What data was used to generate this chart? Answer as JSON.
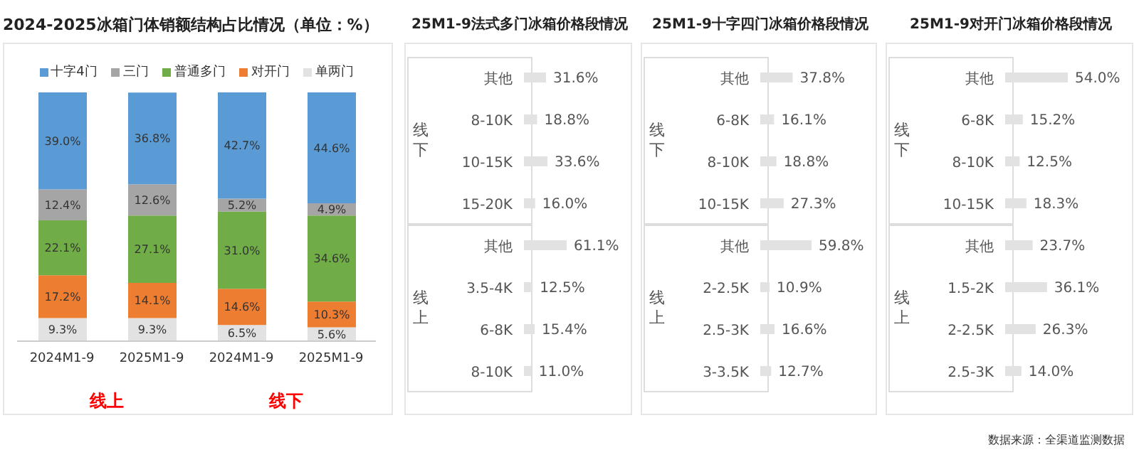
{
  "chart_data": [
    {
      "type": "bar",
      "stacked": true,
      "title": "2024-2025冰箱门体销额结构占比情况（单位：%）",
      "categories": [
        "2024M1-9",
        "2025M1-9",
        "2024M1-9",
        "2025M1-9"
      ],
      "legend": "top",
      "tick_labels": "x",
      "annotations": [
        "线上",
        "线下"
      ],
      "series": [
        {
          "name": "单两门",
          "color": "#e2e2e2",
          "values": [
            9.3,
            9.3,
            6.5,
            5.6
          ],
          "value_labels": [
            "9.3%",
            "9.3%",
            "6.5%",
            "5.6%"
          ]
        },
        {
          "name": "对开门",
          "color": "#ed7d31",
          "values": [
            17.2,
            14.1,
            14.6,
            10.3
          ],
          "value_labels": [
            "17.2%",
            "14.1%",
            "14.6%",
            "10.3%"
          ]
        },
        {
          "name": "普通多门",
          "color": "#70ad47",
          "values": [
            22.1,
            27.1,
            31.0,
            34.6
          ],
          "value_labels": [
            "22.1%",
            "27.1%",
            "31.0%",
            "34.6%"
          ]
        },
        {
          "name": "三门",
          "color": "#a5a5a5",
          "values": [
            12.4,
            12.6,
            5.2,
            4.9
          ],
          "value_labels": [
            "12.4%",
            "12.6%",
            "5.2%",
            "4.9%"
          ]
        },
        {
          "name": "十字4门",
          "color": "#5b9bd5",
          "values": [
            39.0,
            36.8,
            42.7,
            44.6
          ],
          "value_labels": [
            "39.0%",
            "36.8%",
            "42.7%",
            "44.6%"
          ]
        }
      ]
    },
    {
      "type": "bar",
      "orientation": "horizontal",
      "title": "25M1-9法式多门冰箱价格段情况",
      "tick_labels": "y",
      "categories": [
        "其他",
        "8-10K",
        "10-15K",
        "15-20K",
        "其他",
        "3.5-4K",
        "6-8K",
        "8-10K"
      ],
      "values": [
        31.6,
        18.8,
        33.6,
        16.0,
        61.1,
        12.5,
        15.4,
        11.0
      ],
      "value_labels": [
        "31.6%",
        "18.8%",
        "33.6%",
        "16.0%",
        "61.1%",
        "12.5%",
        "15.4%",
        "11.0%"
      ],
      "color": "#e2e2e2",
      "annotations": [
        "线下",
        "线上"
      ]
    },
    {
      "type": "bar",
      "orientation": "horizontal",
      "title": "25M1-9十字四门冰箱价格段情况",
      "tick_labels": "y",
      "categories": [
        "其他",
        "6-8K",
        "8-10K",
        "10-15K",
        "其他",
        "2-2.5K",
        "2.5-3K",
        "3-3.5K"
      ],
      "values": [
        37.8,
        16.1,
        18.8,
        27.3,
        59.8,
        10.9,
        16.6,
        12.7
      ],
      "value_labels": [
        "37.8%",
        "16.1%",
        "18.8%",
        "27.3%",
        "59.8%",
        "10.9%",
        "16.6%",
        "12.7%"
      ],
      "color": "#e2e2e2",
      "annotations": [
        "线下",
        "线上"
      ]
    },
    {
      "type": "bar",
      "orientation": "horizontal",
      "title": "25M1-9对开门冰箱价格段情况",
      "tick_labels": "y",
      "categories": [
        "其他",
        "6-8K",
        "8-10K",
        "10-15K",
        "其他",
        "1.5-2K",
        "2-2.5K",
        "2.5-3K"
      ],
      "values": [
        54.0,
        15.2,
        12.5,
        18.3,
        23.7,
        36.1,
        26.3,
        14.0
      ],
      "value_labels": [
        "54.0%",
        "15.2%",
        "12.5%",
        "18.3%",
        "23.7%",
        "36.1%",
        "26.3%",
        "14.0%"
      ],
      "color": "#e2e2e2",
      "annotations": [
        "线下",
        "线上",
        "数据来源：全渠道监测数据"
      ]
    }
  ]
}
